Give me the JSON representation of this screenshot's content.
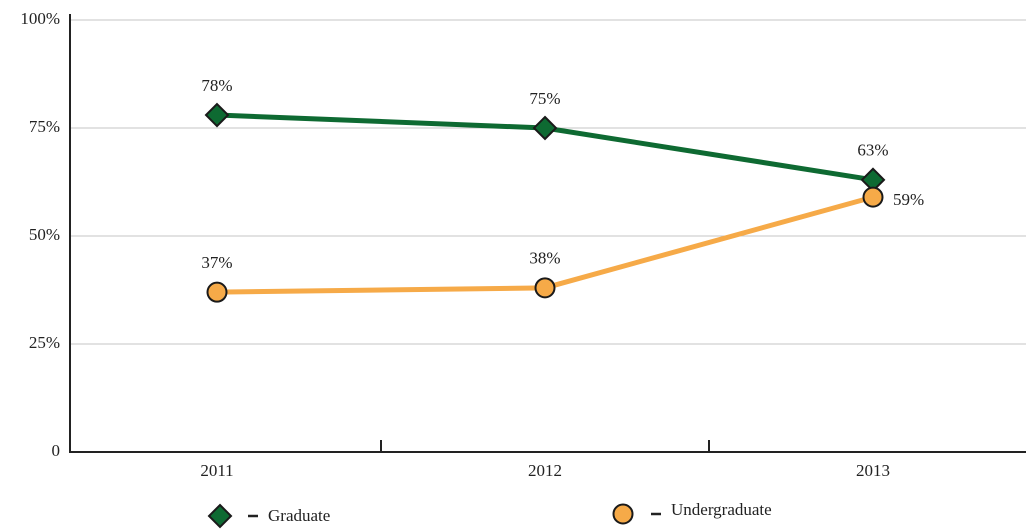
{
  "chart_data": {
    "type": "line",
    "categories": [
      "2011",
      "2012",
      "2013"
    ],
    "series": [
      {
        "name": "Graduate",
        "color": "#0e6a32",
        "marker": "diamond",
        "values": [
          78,
          75,
          63
        ],
        "value_labels": [
          "78%",
          "75%",
          "63%"
        ]
      },
      {
        "name": "Undergraduate",
        "color": "#f6aa48",
        "marker": "circle",
        "values": [
          37,
          38,
          59
        ],
        "value_labels": [
          "37%",
          "38%",
          "59%"
        ]
      }
    ],
    "ylim": [
      0,
      100
    ],
    "yticks": [
      0,
      {
        "value": 25,
        "label": "25%"
      },
      {
        "value": 50,
        "label": "50%"
      },
      {
        "value": 75,
        "label": "75%"
      },
      {
        "value": 100,
        "label": "100%"
      }
    ],
    "grid": true,
    "legend": "bottom"
  }
}
